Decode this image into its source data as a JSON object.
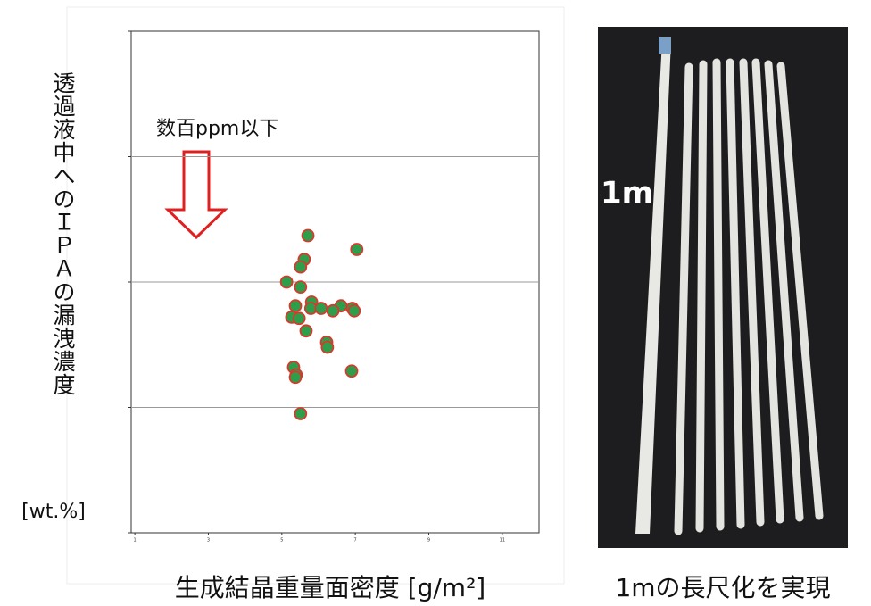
{
  "chart_data": {
    "type": "scatter",
    "y_label": "透過液中へのＩＰＡの漏洩濃度",
    "y_unit": "[wt.%]",
    "x_label": "生成結晶重量面密度 [g/m²]",
    "annotation": "数百ppm以下",
    "x": [
      5.71,
      7.04,
      5.61,
      5.51,
      5.13,
      5.51,
      5.81,
      5.37,
      5.79,
      6.07,
      6.61,
      6.39,
      6.92,
      6.97,
      5.27,
      5.47,
      5.66,
      6.22,
      6.24,
      5.32,
      5.39,
      5.37,
      6.9,
      5.51
    ],
    "values": [
      2.37,
      2.26,
      2.18,
      2.12,
      2.0,
      1.96,
      1.84,
      1.81,
      1.79,
      1.79,
      1.81,
      1.77,
      1.79,
      1.77,
      1.72,
      1.71,
      1.61,
      1.52,
      1.48,
      1.32,
      1.26,
      1.24,
      1.29,
      0.95
    ],
    "color": "#2e9e4a",
    "edge_color": "#d63a2e",
    "xlim": [
      0.9,
      12
    ],
    "xticks": [
      1,
      3,
      5,
      7,
      9,
      11
    ],
    "ylim": [
      0,
      4
    ],
    "yticks": [
      0,
      1,
      2,
      3,
      4
    ],
    "grid": true
  },
  "photo": {
    "label": "1m",
    "caption": "1mの長尺化を実現"
  }
}
